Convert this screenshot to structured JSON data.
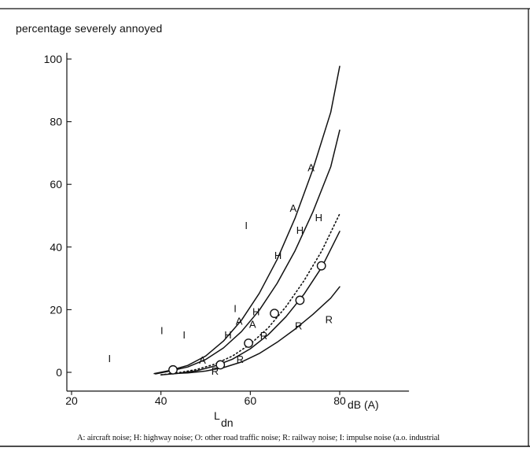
{
  "chart_data": {
    "type": "scatter",
    "ylabel": "percentage severely annoyed",
    "xlabel_main": "L",
    "xlabel_sub": "dn",
    "xlabel_unit": "dB (A)",
    "xlim": [
      18,
      86
    ],
    "ylim": [
      -6,
      102
    ],
    "xticks": [
      20,
      40,
      60,
      80
    ],
    "yticks": [
      0,
      20,
      40,
      60,
      80,
      100
    ],
    "grid": false,
    "caption": "A: aircraft noise; H: highway noise; O: other road traffic noise; R: railway noise; I: impulse noise (a.o. industrial",
    "points": [
      {
        "symbol": "I",
        "x": 28.5,
        "y": 4.5
      },
      {
        "symbol": "I",
        "x": 40.2,
        "y": 13.5
      },
      {
        "symbol": "I",
        "x": 45.2,
        "y": 12
      },
      {
        "symbol": "I",
        "x": 56.6,
        "y": 20.5
      },
      {
        "symbol": "I",
        "x": 59.1,
        "y": 47
      },
      {
        "symbol": "O",
        "x": 42.7,
        "y": 0.8
      },
      {
        "symbol": "O",
        "x": 53.3,
        "y": 2.4
      },
      {
        "symbol": "O",
        "x": 59.6,
        "y": 9.3
      },
      {
        "symbol": "O",
        "x": 65.4,
        "y": 18.8
      },
      {
        "symbol": "O",
        "x": 71.1,
        "y": 23
      },
      {
        "symbol": "O",
        "x": 75.9,
        "y": 34
      },
      {
        "symbol": "A",
        "x": 49.3,
        "y": 4
      },
      {
        "symbol": "A",
        "x": 57.5,
        "y": 16.5
      },
      {
        "symbol": "A",
        "x": 60.5,
        "y": 15.5
      },
      {
        "symbol": "A",
        "x": 69.6,
        "y": 52.5
      },
      {
        "symbol": "A",
        "x": 73.6,
        "y": 65.5
      },
      {
        "symbol": "H",
        "x": 55,
        "y": 12
      },
      {
        "symbol": "H",
        "x": 61.3,
        "y": 19.5
      },
      {
        "symbol": "H",
        "x": 66.2,
        "y": 37.5
      },
      {
        "symbol": "H",
        "x": 71.1,
        "y": 45.5
      },
      {
        "symbol": "H",
        "x": 75.3,
        "y": 49.5
      },
      {
        "symbol": "R",
        "x": 52.1,
        "y": 0.5
      },
      {
        "symbol": "R",
        "x": 57.7,
        "y": 4.3
      },
      {
        "symbol": "R",
        "x": 63,
        "y": 11.8
      },
      {
        "symbol": "R",
        "x": 70.8,
        "y": 15
      },
      {
        "symbol": "R",
        "x": 77.6,
        "y": 17
      }
    ],
    "series": [
      {
        "symbol": "A",
        "style": "solid",
        "x": [
          38.5,
          42,
          46,
          50,
          54,
          58,
          62,
          66,
          70,
          74,
          78,
          80
        ],
        "y": [
          -0.4,
          0.6,
          2.2,
          5.2,
          10,
          16.6,
          25.2,
          36,
          49.2,
          64.8,
          83,
          97.7
        ]
      },
      {
        "symbol": "H",
        "style": "solid",
        "x": [
          38.8,
          42,
          46,
          50,
          54,
          58,
          62,
          66,
          70,
          74,
          78,
          80
        ],
        "y": [
          -0.5,
          0.4,
          1.7,
          4.1,
          7.8,
          13,
          19.8,
          28.4,
          38.8,
          51.2,
          65.6,
          77.3
        ]
      },
      {
        "symbol": "O",
        "style": "dotted",
        "x": [
          40,
          44,
          48,
          52,
          56,
          60,
          64,
          68,
          72,
          76,
          80
        ],
        "y": [
          -0.8,
          -0.1,
          0.9,
          2.6,
          5.2,
          9,
          14.2,
          21,
          29.2,
          38.8,
          50.6
        ]
      },
      {
        "symbol": "O",
        "style": "solid",
        "x": [
          40,
          44,
          48,
          52,
          56,
          60,
          64,
          68,
          72,
          76,
          80
        ],
        "y": [
          -0.8,
          -0.3,
          0.5,
          2,
          4.2,
          7.5,
          12,
          17.8,
          24.9,
          33.6,
          45
        ]
      },
      {
        "symbol": "R",
        "style": "solid",
        "x": [
          42,
          46,
          50,
          54,
          58,
          62,
          66,
          70,
          74,
          78,
          80
        ],
        "y": [
          -0.4,
          -0.2,
          0.4,
          1.5,
          3.3,
          6,
          9.6,
          13.8,
          18.5,
          23.7,
          27.3
        ]
      }
    ]
  }
}
